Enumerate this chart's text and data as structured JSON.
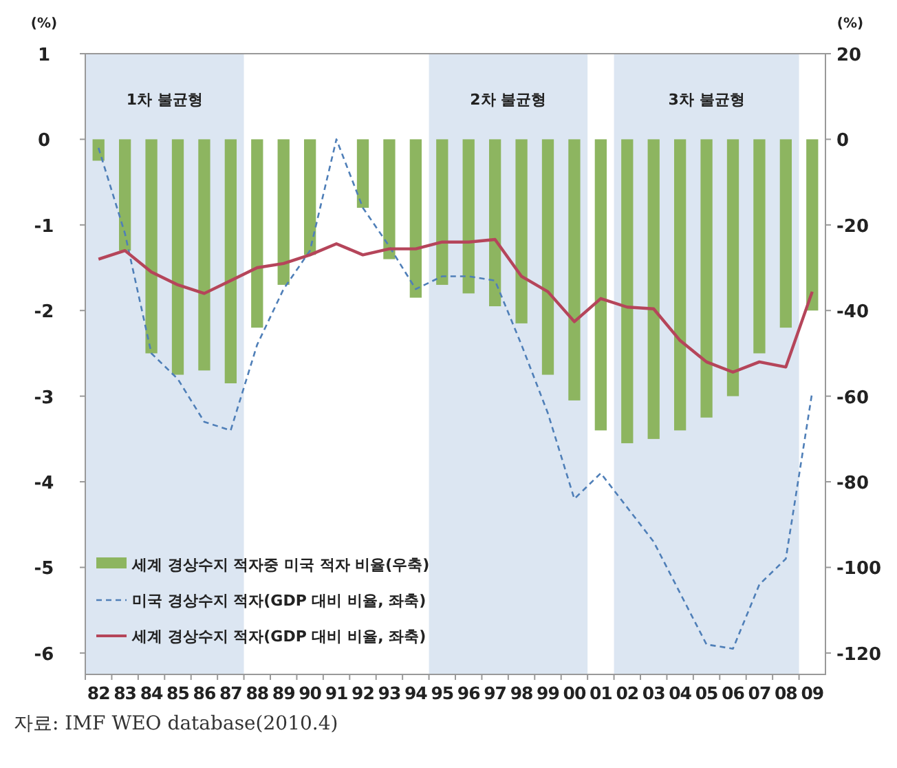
{
  "chart_data": {
    "type": "bar",
    "ylabel": "(%)",
    "y2label": "(%)",
    "categories": [
      "82",
      "83",
      "84",
      "85",
      "86",
      "87",
      "88",
      "89",
      "90",
      "91",
      "92",
      "93",
      "94",
      "95",
      "96",
      "97",
      "98",
      "99",
      "00",
      "01",
      "02",
      "03",
      "04",
      "05",
      "06",
      "07",
      "08",
      "09"
    ],
    "series": [
      {
        "name": "세계 경상수지 적자중 미국 적자 비율(우축)",
        "axis": "y2",
        "color": "#8db560",
        "values": [
          -5,
          -26,
          -50,
          -55,
          -54,
          -57,
          -44,
          -34,
          -27,
          null,
          -16,
          -28,
          -37,
          -34,
          -36,
          -39,
          -43,
          -55,
          -61,
          -68,
          -71,
          -70,
          -68,
          -65,
          -60,
          -50,
          -44,
          -40
        ]
      },
      {
        "name": "미국 경상수지 적자(GDP 대비 비율, 좌축)",
        "type": "line",
        "line_style": "dashed",
        "color": "#4f7fb8",
        "values": [
          -0.1,
          -1.1,
          -2.5,
          -2.8,
          -3.3,
          -3.4,
          -2.4,
          -1.75,
          -1.3,
          0,
          -0.8,
          -1.25,
          -1.75,
          -1.6,
          -1.6,
          -1.65,
          -2.4,
          -3.2,
          -4.2,
          -3.9,
          -4.3,
          -4.7,
          -5.3,
          -5.9,
          -5.95,
          -5.2,
          -4.9,
          -2.95
        ]
      },
      {
        "name": "세계 경상수지 적자(GDP 대비 비율, 좌축)",
        "type": "line",
        "line_style": "solid",
        "color": "#b5455a",
        "values": [
          -1.4,
          -1.3,
          -1.55,
          -1.7,
          -1.8,
          -1.65,
          -1.5,
          -1.45,
          -1.35,
          -1.22,
          -1.35,
          -1.28,
          -1.28,
          -1.2,
          -1.2,
          -1.17,
          -1.6,
          -1.78,
          -2.13,
          -1.86,
          -1.96,
          -1.98,
          -2.35,
          -2.6,
          -2.72,
          -2.6,
          -2.66,
          -1.78
        ]
      }
    ],
    "ylim": [
      -6.25,
      1
    ],
    "yticks": [
      1,
      0,
      -1,
      -2,
      -3,
      -4,
      -5,
      -6
    ],
    "y2lim": [
      -125,
      20
    ],
    "y2ticks": [
      20,
      0,
      -20,
      -40,
      -60,
      -80,
      -100,
      -120
    ],
    "bands": [
      {
        "axis": "x",
        "from": "82",
        "to": "87",
        "label": "1차 불균형",
        "color": "#dce6f2"
      },
      {
        "axis": "x",
        "from": "95",
        "to": "00",
        "label": "2차 불균형",
        "color": "#dce6f2"
      },
      {
        "axis": "x",
        "from": "02",
        "to": "08",
        "label": "3차 불균형",
        "color": "#dce6f2"
      }
    ],
    "grid": false,
    "legend": "bottom left",
    "marker": "none",
    "annotations": [
      "자료: IMF WEO database(2010.4)"
    ]
  }
}
